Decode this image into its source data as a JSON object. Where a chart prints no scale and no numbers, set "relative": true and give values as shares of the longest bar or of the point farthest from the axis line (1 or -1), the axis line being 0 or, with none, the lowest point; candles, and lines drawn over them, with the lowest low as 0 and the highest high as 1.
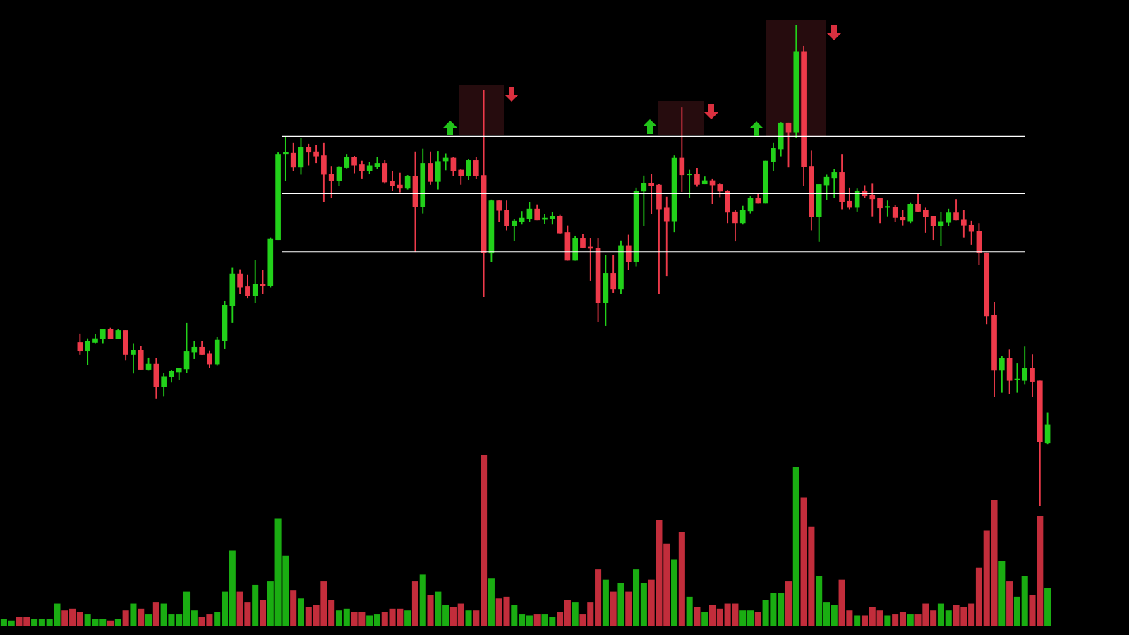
{
  "chart_data": [
    {
      "type": "candlestick",
      "relative": true,
      "categories": [
        null,
        null,
        null,
        null,
        null,
        null,
        null,
        null,
        null,
        null,
        null,
        null,
        null,
        null,
        null,
        null,
        null,
        null,
        null,
        null,
        null,
        null,
        null,
        null,
        null,
        null,
        null,
        null,
        null,
        null,
        null,
        null,
        null,
        null,
        null,
        null,
        null,
        null,
        null,
        null,
        null,
        null,
        null,
        null,
        null,
        null,
        null,
        null,
        null,
        null,
        null,
        null,
        null,
        null,
        null,
        null,
        null,
        null,
        null,
        null,
        null,
        null,
        null,
        null,
        null,
        null,
        null,
        null,
        null,
        null,
        null,
        null,
        null,
        null,
        null,
        null,
        null,
        null,
        null,
        null,
        null,
        null,
        null,
        null,
        null,
        null,
        null,
        null,
        null,
        null,
        null,
        null,
        null,
        null,
        null,
        null,
        null,
        null,
        null,
        null,
        null,
        null,
        null,
        null,
        null,
        null,
        null,
        null,
        null,
        null,
        null,
        null,
        null,
        null,
        null,
        null,
        null,
        null,
        null,
        null,
        null,
        null,
        null,
        null,
        null,
        null,
        null,
        null,
        null,
        null,
        null,
        null,
        null,
        null,
        null,
        null,
        null,
        null
      ],
      "ohlc": [
        null,
        null,
        null,
        null,
        null,
        null,
        null,
        null,
        null,
        null,
        [
          0.34,
          0.358,
          0.315,
          0.322
        ],
        [
          0.322,
          0.348,
          0.294,
          0.342
        ],
        [
          0.34,
          0.357,
          0.339,
          0.348
        ],
        [
          0.347,
          0.368,
          0.339,
          0.367
        ],
        [
          0.367,
          0.37,
          0.348,
          0.348
        ],
        [
          0.348,
          0.367,
          0.348,
          0.365
        ],
        [
          0.365,
          0.365,
          0.304,
          0.315
        ],
        [
          0.315,
          0.338,
          0.276,
          0.324
        ],
        [
          0.324,
          0.332,
          0.284,
          0.284
        ],
        [
          0.284,
          0.308,
          0.282,
          0.295
        ],
        [
          0.295,
          0.307,
          0.224,
          0.248
        ],
        [
          0.248,
          0.276,
          0.229,
          0.269
        ],
        [
          0.268,
          0.282,
          0.257,
          0.28
        ],
        [
          0.279,
          0.286,
          0.263,
          0.286
        ],
        [
          0.285,
          0.38,
          0.278,
          0.321
        ],
        [
          0.32,
          0.343,
          0.306,
          0.33
        ],
        [
          0.33,
          0.343,
          0.315,
          0.315
        ],
        [
          0.316,
          0.323,
          0.287,
          0.295
        ],
        [
          0.295,
          0.351,
          0.292,
          0.345
        ],
        [
          0.344,
          0.426,
          0.328,
          0.418
        ],
        [
          0.417,
          0.495,
          0.381,
          0.483
        ],
        [
          0.483,
          0.492,
          0.442,
          0.455
        ],
        [
          0.456,
          0.48,
          0.432,
          0.438
        ],
        [
          0.438,
          0.512,
          0.423,
          0.462
        ],
        [
          0.462,
          0.49,
          0.441,
          0.458
        ],
        [
          0.458,
          0.558,
          0.455,
          0.555
        ],
        [
          0.554,
          0.735,
          0.554,
          0.732
        ],
        [
          0.733,
          0.769,
          0.676,
          0.734
        ],
        [
          0.734,
          0.756,
          0.698,
          0.705
        ],
        [
          0.705,
          0.765,
          0.69,
          0.746
        ],
        [
          0.746,
          0.753,
          0.709,
          0.736
        ],
        [
          0.737,
          0.75,
          0.714,
          0.728
        ],
        [
          0.729,
          0.756,
          0.633,
          0.69
        ],
        [
          0.691,
          0.707,
          0.642,
          0.676
        ],
        [
          0.676,
          0.707,
          0.667,
          0.706
        ],
        [
          0.704,
          0.732,
          0.703,
          0.726
        ],
        [
          0.726,
          0.728,
          0.693,
          0.709
        ],
        [
          0.71,
          0.718,
          0.682,
          0.697
        ],
        [
          0.697,
          0.715,
          0.691,
          0.708
        ],
        [
          0.706,
          0.726,
          0.702,
          0.713
        ],
        [
          0.713,
          0.719,
          0.671,
          0.674
        ],
        [
          0.675,
          0.696,
          0.656,
          0.666
        ],
        [
          0.668,
          0.693,
          0.653,
          0.661
        ],
        [
          0.661,
          0.688,
          0.659,
          0.686
        ],
        [
          0.686,
          0.737,
          0.529,
          0.622
        ],
        [
          0.622,
          0.743,
          0.609,
          0.713
        ],
        [
          0.713,
          0.737,
          0.669,
          0.675
        ],
        [
          0.675,
          0.738,
          0.659,
          0.717
        ],
        [
          0.718,
          0.733,
          0.699,
          0.724
        ],
        [
          0.724,
          0.725,
          0.687,
          0.697
        ],
        [
          0.699,
          0.7,
          0.669,
          0.687
        ],
        [
          0.687,
          0.722,
          0.679,
          0.719
        ],
        [
          0.719,
          0.726,
          0.681,
          0.687
        ],
        [
          0.688,
          0.866,
          0.435,
          0.526
        ],
        [
          0.526,
          0.637,
          0.508,
          0.635
        ],
        [
          0.635,
          0.635,
          0.592,
          0.615
        ],
        [
          0.616,
          0.635,
          0.574,
          0.582
        ],
        [
          0.582,
          0.597,
          0.552,
          0.593
        ],
        [
          0.592,
          0.613,
          0.586,
          0.599
        ],
        [
          0.598,
          0.631,
          0.592,
          0.618
        ],
        [
          0.618,
          0.627,
          0.595,
          0.595
        ],
        [
          0.596,
          0.606,
          0.587,
          0.599
        ],
        [
          0.598,
          0.611,
          0.586,
          0.603
        ],
        [
          0.603,
          0.605,
          0.567,
          0.568
        ],
        [
          0.569,
          0.583,
          0.511,
          0.511
        ],
        [
          0.511,
          0.562,
          0.511,
          0.556
        ],
        [
          0.556,
          0.566,
          0.538,
          0.538
        ],
        [
          0.539,
          0.556,
          0.469,
          0.536
        ],
        [
          0.537,
          0.556,
          0.383,
          0.423
        ],
        [
          0.423,
          0.521,
          0.375,
          0.484
        ],
        [
          0.484,
          0.522,
          0.444,
          0.451
        ],
        [
          0.451,
          0.552,
          0.441,
          0.542
        ],
        [
          0.542,
          0.564,
          0.492,
          0.508
        ],
        [
          0.508,
          0.662,
          0.499,
          0.656
        ],
        [
          0.655,
          0.687,
          0.582,
          0.672
        ],
        [
          0.672,
          0.691,
          0.608,
          0.666
        ],
        [
          0.668,
          0.669,
          0.441,
          0.618
        ],
        [
          0.62,
          0.643,
          0.479,
          0.593
        ],
        [
          0.593,
          0.729,
          0.57,
          0.724
        ],
        [
          0.724,
          0.829,
          0.654,
          0.689
        ],
        [
          0.689,
          0.699,
          0.642,
          0.691
        ],
        [
          0.691,
          0.703,
          0.665,
          0.669
        ],
        [
          0.67,
          0.685,
          0.67,
          0.677
        ],
        [
          0.677,
          0.681,
          0.629,
          0.668
        ],
        [
          0.669,
          0.671,
          0.643,
          0.655
        ],
        [
          0.656,
          0.657,
          0.589,
          0.611
        ],
        [
          0.612,
          0.615,
          0.551,
          0.589
        ],
        [
          0.589,
          0.624,
          0.586,
          0.615
        ],
        [
          0.614,
          0.644,
          0.609,
          0.64
        ],
        [
          0.64,
          0.649,
          0.63,
          0.63
        ],
        [
          0.63,
          0.718,
          0.63,
          0.718
        ],
        [
          0.717,
          0.756,
          0.698,
          0.744
        ],
        [
          0.743,
          0.798,
          0.728,
          0.797
        ],
        [
          0.797,
          0.797,
          0.705,
          0.778
        ],
        [
          0.778,
          1,
          0.766,
          0.946
        ],
        [
          0.946,
          0.957,
          0.666,
          0.706
        ],
        [
          0.707,
          0.739,
          0.574,
          0.602
        ],
        [
          0.602,
          0.669,
          0.55,
          0.669
        ],
        [
          0.668,
          0.689,
          0.637,
          0.684
        ],
        [
          0.683,
          0.7,
          0.641,
          0.694
        ],
        [
          0.694,
          0.732,
          0.618,
          0.633
        ],
        [
          0.634,
          0.662,
          0.618,
          0.621
        ],
        [
          0.621,
          0.66,
          0.613,
          0.656
        ],
        [
          0.656,
          0.667,
          0.641,
          0.645
        ],
        [
          0.647,
          0.67,
          0.603,
          0.639
        ],
        [
          0.641,
          0.641,
          0.589,
          0.62
        ],
        [
          0.621,
          0.635,
          0.603,
          0.622
        ],
        [
          0.621,
          0.626,
          0.592,
          0.6
        ],
        [
          0.601,
          0.616,
          0.584,
          0.595
        ],
        [
          0.593,
          0.63,
          0.589,
          0.628
        ],
        [
          0.628,
          0.651,
          0.613,
          0.613
        ],
        [
          0.615,
          0.62,
          0.569,
          0.602
        ],
        [
          0.603,
          0.603,
          0.554,
          0.582
        ],
        [
          0.582,
          0.611,
          0.541,
          0.592
        ],
        [
          0.59,
          0.618,
          0.582,
          0.61
        ],
        [
          0.61,
          0.638,
          0.595,
          0.595
        ],
        [
          0.595,
          0.615,
          0.559,
          0.584
        ],
        [
          0.584,
          0.593,
          0.544,
          0.571
        ],
        [
          0.572,
          0.588,
          0.502,
          0.527
        ],
        [
          0.527,
          0.527,
          0.379,
          0.395
        ],
        [
          0.396,
          0.424,
          0.228,
          0.282
        ],
        [
          0.282,
          0.312,
          0.236,
          0.307
        ],
        [
          0.307,
          0.325,
          0.233,
          0.261
        ],
        [
          0.262,
          0.296,
          0.236,
          0.263
        ],
        [
          0.261,
          0.331,
          0.254,
          0.287
        ],
        [
          0.287,
          0.315,
          0.228,
          0.259
        ],
        [
          0.26,
          0.26,
          0,
          0.133
        ],
        [
          0.131,
          0.194,
          0.128,
          0.169
        ]
      ],
      "colors": [
        null,
        null,
        null,
        null,
        null,
        null,
        null,
        null,
        null,
        null,
        "#ee3a4a",
        "#22d11a",
        "#22d11a",
        "#22d11a",
        "#ee3a4a",
        "#22d11a",
        "#ee3a4a",
        "#22d11a",
        "#ee3a4a",
        "#22d11a",
        "#ee3a4a",
        "#22d11a",
        "#22d11a",
        "#22d11a",
        "#22d11a",
        "#22d11a",
        "#ee3a4a",
        "#ee3a4a",
        "#22d11a",
        "#22d11a",
        "#22d11a",
        "#ee3a4a",
        "#ee3a4a",
        "#22d11a",
        "#ee3a4a",
        "#22d11a",
        "#22d11a",
        "#22d11a",
        "#ee3a4a",
        "#22d11a",
        "#ee3a4a",
        "#ee3a4a",
        "#ee3a4a",
        "#ee3a4a",
        "#22d11a",
        "#22d11a",
        "#ee3a4a",
        "#ee3a4a",
        "#22d11a",
        "#22d11a",
        "#ee3a4a",
        "#ee3a4a",
        "#ee3a4a",
        "#22d11a",
        "#ee3a4a",
        "#22d11a",
        "#ee3a4a",
        "#22d11a",
        "#22d11a",
        "#ee3a4a",
        "#ee3a4a",
        "#22d11a",
        "#ee3a4a",
        "#ee3a4a",
        "#22d11a",
        "#ee3a4a",
        "#ee3a4a",
        "#22d11a",
        "#22d11a",
        "#22d11a",
        "#ee3a4a",
        "#22d11a",
        "#22d11a",
        "#ee3a4a",
        "#ee3a4a",
        "#22d11a",
        "#ee3a4a",
        "#ee3a4a",
        "#ee3a4a",
        "#22d11a",
        "#ee3a4a",
        "#22d11a",
        "#ee3a4a",
        "#22d11a",
        "#22d11a",
        "#ee3a4a",
        "#ee3a4a",
        "#ee3a4a",
        "#22d11a",
        "#ee3a4a",
        "#22d11a",
        "#ee3a4a",
        "#22d11a",
        "#ee3a4a",
        "#ee3a4a",
        "#ee3a4a",
        "#ee3a4a",
        "#22d11a",
        "#22d11a",
        "#ee3a4a",
        "#22d11a",
        "#22d11a",
        "#22d11a",
        "#ee3a4a",
        "#22d11a",
        "#ee3a4a",
        "#ee3a4a",
        "#22d11a",
        "#22d11a",
        "#22d11a",
        "#ee3a4a",
        "#ee3a4a",
        "#22d11a",
        "#ee3a4a",
        "#ee3a4a",
        "#ee3a4a",
        "#22d11a",
        "#ee3a4a",
        "#ee3a4a",
        "#22d11a",
        "#ee3a4a",
        "#ee3a4a",
        "#ee3a4a",
        "#22d11a",
        "#22d11a",
        "#ee3a4a",
        "#ee3a4a",
        "#ee3a4a",
        "#ee3a4a",
        "#ee3a4a",
        "#ee3a4a",
        "#22d11a",
        "#ee3a4a",
        "#22d11a",
        "#22d11a",
        "#ee3a4a",
        "#ee3a4a",
        "#22d11a"
      ],
      "ref_lines": [
        {
          "axis": "y",
          "value": 0.769,
          "color": "#ffffff"
        },
        {
          "axis": "y",
          "value": 0.65,
          "color": "#ffffff"
        },
        {
          "axis": "y",
          "value": 0.529,
          "color": "#ffffff"
        }
      ]
    },
    {
      "type": "bar",
      "relative": true,
      "categories": [
        null,
        null,
        null,
        null,
        null,
        null,
        null,
        null,
        null,
        null,
        null,
        null,
        null,
        null,
        null,
        null,
        null,
        null,
        null,
        null,
        null,
        null,
        null,
        null,
        null,
        null,
        null,
        null,
        null,
        null,
        null,
        null,
        null,
        null,
        null,
        null,
        null,
        null,
        null,
        null,
        null,
        null,
        null,
        null,
        null,
        null,
        null,
        null,
        null,
        null,
        null,
        null,
        null,
        null,
        null,
        null,
        null,
        null,
        null,
        null,
        null,
        null,
        null,
        null,
        null,
        null,
        null,
        null,
        null,
        null,
        null,
        null,
        null,
        null,
        null,
        null,
        null,
        null,
        null,
        null,
        null,
        null,
        null,
        null,
        null,
        null,
        null,
        null,
        null,
        null,
        null,
        null,
        null,
        null,
        null,
        null,
        null,
        null,
        null,
        null,
        null,
        null,
        null,
        null,
        null,
        null,
        null,
        null,
        null,
        null,
        null,
        null,
        null,
        null,
        null,
        null,
        null,
        null,
        null,
        null,
        null,
        null,
        null,
        null,
        null,
        null,
        null,
        null,
        null,
        null,
        null,
        null,
        null,
        null,
        null,
        null,
        null,
        null
      ],
      "values": [
        0.04,
        0.03,
        0.05,
        0.05,
        0.04,
        0.04,
        0.04,
        0.13,
        0.09,
        0.1,
        0.08,
        0.07,
        0.04,
        0.04,
        0.03,
        0.04,
        0.09,
        0.13,
        0.1,
        0.07,
        0.14,
        0.13,
        0.07,
        0.07,
        0.2,
        0.09,
        0.05,
        0.07,
        0.08,
        0.2,
        0.44,
        0.2,
        0.14,
        0.24,
        0.15,
        0.26,
        0.63,
        0.41,
        0.21,
        0.16,
        0.11,
        0.12,
        0.26,
        0.15,
        0.09,
        0.1,
        0.08,
        0.08,
        0.06,
        0.07,
        0.08,
        0.1,
        0.1,
        0.09,
        0.26,
        0.3,
        0.18,
        0.2,
        0.12,
        0.11,
        0.13,
        0.09,
        0.09,
        1,
        0.28,
        0.16,
        0.17,
        0.12,
        0.07,
        0.06,
        0.07,
        0.07,
        0.05,
        0.08,
        0.15,
        0.14,
        0.07,
        0.14,
        0.33,
        0.27,
        0.2,
        0.25,
        0.2,
        0.33,
        0.25,
        0.27,
        0.62,
        0.48,
        0.39,
        0.55,
        0.17,
        0.11,
        0.08,
        0.12,
        0.1,
        0.13,
        0.13,
        0.09,
        0.09,
        0.08,
        0.15,
        0.19,
        0.19,
        0.26,
        0.93,
        0.75,
        0.58,
        0.29,
        0.14,
        0.12,
        0.27,
        0.09,
        0.06,
        0.06,
        0.11,
        0.09,
        0.06,
        0.07,
        0.08,
        0.07,
        0.07,
        0.13,
        0.09,
        0.13,
        0.09,
        0.12,
        0.11,
        0.13,
        0.34,
        0.56,
        0.74,
        0.38,
        0.26,
        0.17,
        0.29,
        0.18,
        0.64,
        0.22
      ],
      "colors": [
        "#1aad12",
        "#1aad12",
        "#c22d3b",
        "#c22d3b",
        "#1aad12",
        "#1aad12",
        "#1aad12",
        "#1aad12",
        "#c22d3b",
        "#c22d3b",
        "#c22d3b",
        "#1aad12",
        "#1aad12",
        "#1aad12",
        "#c22d3b",
        "#1aad12",
        "#c22d3b",
        "#1aad12",
        "#c22d3b",
        "#1aad12",
        "#c22d3b",
        "#1aad12",
        "#1aad12",
        "#1aad12",
        "#1aad12",
        "#1aad12",
        "#c22d3b",
        "#c22d3b",
        "#1aad12",
        "#1aad12",
        "#1aad12",
        "#c22d3b",
        "#c22d3b",
        "#1aad12",
        "#c22d3b",
        "#1aad12",
        "#1aad12",
        "#1aad12",
        "#c22d3b",
        "#1aad12",
        "#c22d3b",
        "#c22d3b",
        "#c22d3b",
        "#c22d3b",
        "#1aad12",
        "#1aad12",
        "#c22d3b",
        "#c22d3b",
        "#1aad12",
        "#1aad12",
        "#c22d3b",
        "#c22d3b",
        "#c22d3b",
        "#1aad12",
        "#c22d3b",
        "#1aad12",
        "#c22d3b",
        "#1aad12",
        "#1aad12",
        "#c22d3b",
        "#c22d3b",
        "#1aad12",
        "#c22d3b",
        "#c22d3b",
        "#1aad12",
        "#c22d3b",
        "#c22d3b",
        "#1aad12",
        "#1aad12",
        "#1aad12",
        "#c22d3b",
        "#1aad12",
        "#1aad12",
        "#c22d3b",
        "#c22d3b",
        "#1aad12",
        "#c22d3b",
        "#c22d3b",
        "#c22d3b",
        "#1aad12",
        "#c22d3b",
        "#1aad12",
        "#c22d3b",
        "#1aad12",
        "#1aad12",
        "#c22d3b",
        "#c22d3b",
        "#c22d3b",
        "#1aad12",
        "#c22d3b",
        "#1aad12",
        "#c22d3b",
        "#1aad12",
        "#c22d3b",
        "#c22d3b",
        "#c22d3b",
        "#c22d3b",
        "#1aad12",
        "#1aad12",
        "#c22d3b",
        "#1aad12",
        "#1aad12",
        "#1aad12",
        "#c22d3b",
        "#1aad12",
        "#c22d3b",
        "#c22d3b",
        "#1aad12",
        "#1aad12",
        "#1aad12",
        "#c22d3b",
        "#c22d3b",
        "#1aad12",
        "#c22d3b",
        "#c22d3b",
        "#c22d3b",
        "#1aad12",
        "#c22d3b",
        "#c22d3b",
        "#1aad12",
        "#c22d3b",
        "#c22d3b",
        "#c22d3b",
        "#1aad12",
        "#1aad12",
        "#c22d3b",
        "#c22d3b",
        "#c22d3b",
        "#c22d3b",
        "#c22d3b",
        "#c22d3b",
        "#1aad12",
        "#c22d3b",
        "#1aad12",
        "#1aad12",
        "#c22d3b",
        "#c22d3b",
        "#1aad12"
      ]
    }
  ]
}
